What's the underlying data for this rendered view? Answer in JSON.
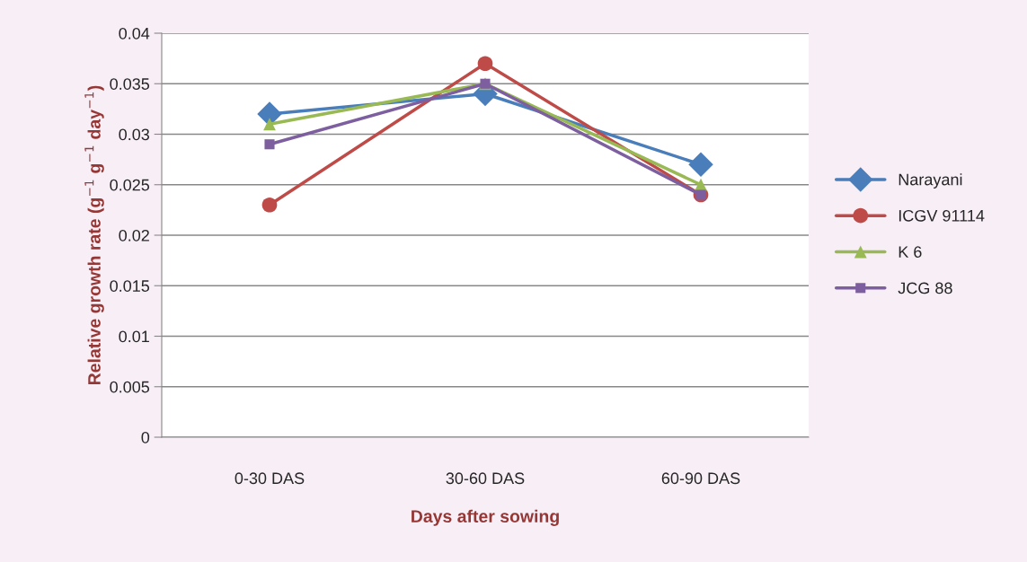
{
  "chart_data": {
    "type": "line",
    "xlabel": "Days after sowing",
    "ylabel": "Relative growth rate (g$^{−1}$ g$^{−1}$ day$^{−1}$)",
    "categories": [
      "0-30 DAS",
      "30-60 DAS",
      "60-90 DAS"
    ],
    "series": [
      {
        "name": "Narayani",
        "color": "#4a7ebb",
        "marker": "diamond",
        "values": [
          0.032,
          0.034,
          0.027
        ]
      },
      {
        "name": "ICGV 91114",
        "color": "#be4b48",
        "marker": "circle",
        "values": [
          0.023,
          0.037,
          0.024
        ]
      },
      {
        "name": "K 6",
        "color": "#98b954",
        "marker": "triangle",
        "values": [
          0.031,
          0.035,
          0.025
        ]
      },
      {
        "name": "JCG 88",
        "color": "#7d5fa0",
        "marker": "square",
        "values": [
          0.029,
          0.035,
          0.024
        ]
      }
    ],
    "ylim": [
      0,
      0.04
    ],
    "yticks": [
      0,
      0.005,
      0.01,
      0.015,
      0.02,
      0.025,
      0.03,
      0.035,
      0.04
    ],
    "grid": "y",
    "legend": "right",
    "line_style": "solid"
  }
}
